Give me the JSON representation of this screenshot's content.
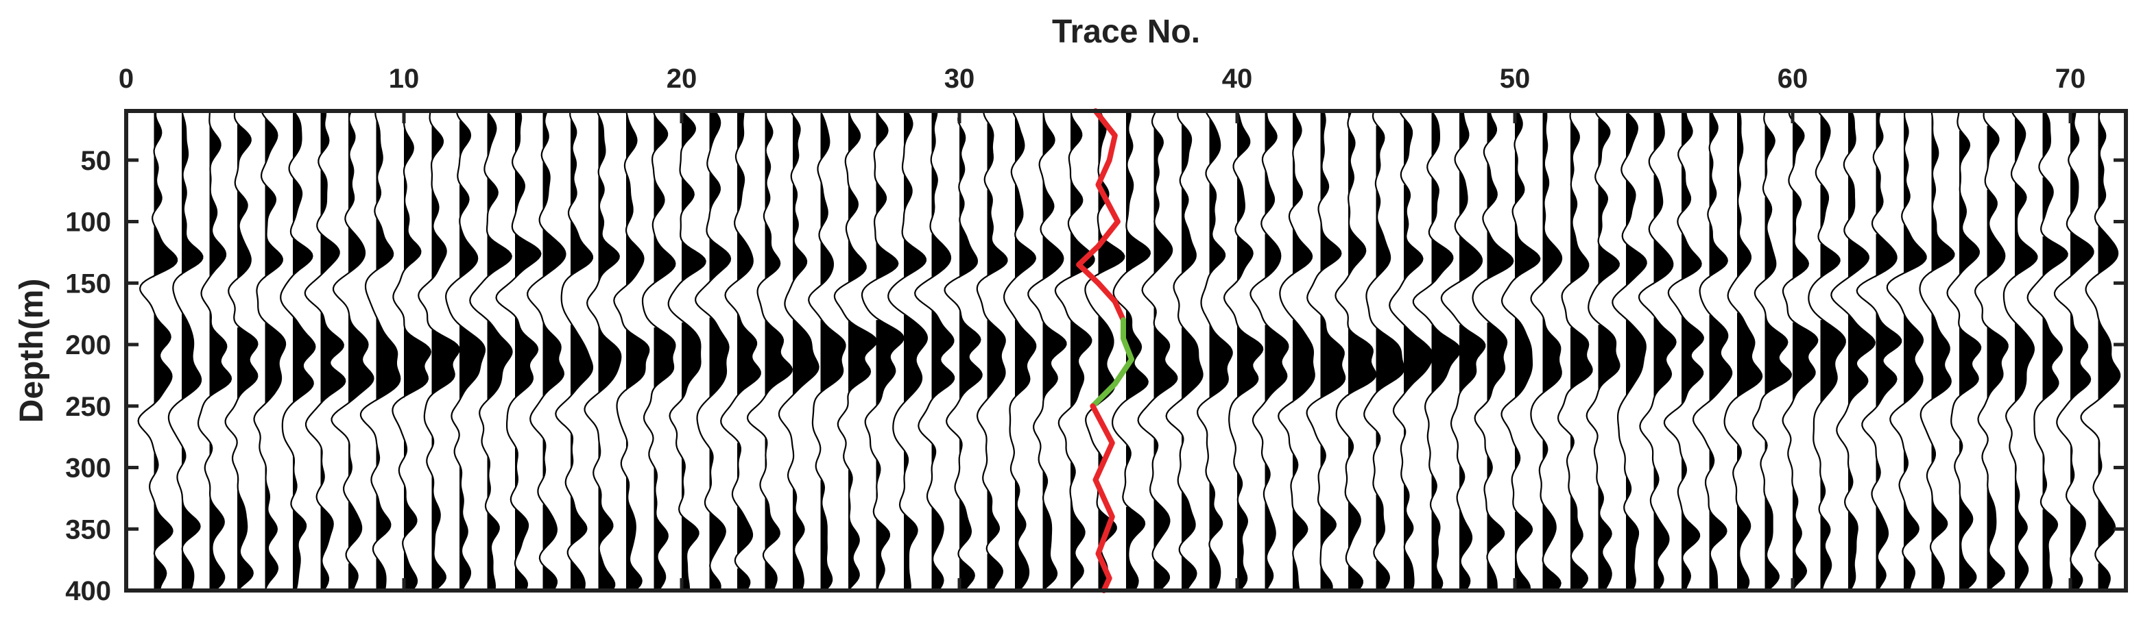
{
  "chart_data": {
    "type": "seismic wiggle trace plot",
    "xlabel": "Trace No.",
    "ylabel": "Depth(m)",
    "x_axis_position": "top",
    "y_axis_reversed": true,
    "xlim": [
      0,
      72
    ],
    "ylim": [
      10,
      400
    ],
    "x_ticks": [
      0,
      10,
      20,
      30,
      40,
      50,
      60,
      70
    ],
    "y_ticks": [
      50,
      100,
      150,
      200,
      250,
      300,
      350,
      400
    ],
    "x_tick_labels": [
      "0",
      "10",
      "20",
      "30",
      "40",
      "50",
      "60",
      "70"
    ],
    "y_tick_labels": [
      "50",
      "100",
      "150",
      "200",
      "250",
      "300",
      "350",
      "400"
    ],
    "grid": false,
    "trace_count": 72,
    "positive_fill": "black",
    "trace_color": "#000000",
    "events": [
      {
        "depth": 30,
        "strength": 0.35
      },
      {
        "depth": 80,
        "strength": 0.28
      },
      {
        "depth": 130,
        "strength": 0.85
      },
      {
        "depth": 160,
        "strength": -0.55
      },
      {
        "depth": 200,
        "strength": 0.9
      },
      {
        "depth": 225,
        "strength": 0.85
      },
      {
        "depth": 260,
        "strength": -0.5
      },
      {
        "depth": 350,
        "strength": 0.55
      },
      {
        "depth": 390,
        "strength": 0.5
      }
    ],
    "marked_trace_lines": [
      {
        "color": "#e8262a",
        "points": [
          {
            "trace": 34.9,
            "depth": 10
          },
          {
            "trace": 35.6,
            "depth": 30
          },
          {
            "trace": 35.4,
            "depth": 50
          },
          {
            "trace": 35.0,
            "depth": 70
          },
          {
            "trace": 35.7,
            "depth": 100
          },
          {
            "trace": 35.0,
            "depth": 120
          },
          {
            "trace": 34.3,
            "depth": 135
          },
          {
            "trace": 35.0,
            "depth": 150
          },
          {
            "trace": 35.6,
            "depth": 165
          },
          {
            "trace": 35.9,
            "depth": 180
          }
        ]
      },
      {
        "color": "#6cbb3c",
        "points": [
          {
            "trace": 35.9,
            "depth": 180
          },
          {
            "trace": 35.9,
            "depth": 195
          },
          {
            "trace": 36.2,
            "depth": 212
          },
          {
            "trace": 35.6,
            "depth": 232
          },
          {
            "trace": 34.8,
            "depth": 250
          }
        ]
      },
      {
        "color": "#e8262a",
        "points": [
          {
            "trace": 34.8,
            "depth": 250
          },
          {
            "trace": 35.5,
            "depth": 280
          },
          {
            "trace": 34.9,
            "depth": 310
          },
          {
            "trace": 35.5,
            "depth": 340
          },
          {
            "trace": 35.0,
            "depth": 370
          },
          {
            "trace": 35.4,
            "depth": 390
          },
          {
            "trace": 35.2,
            "depth": 400
          }
        ]
      }
    ]
  }
}
